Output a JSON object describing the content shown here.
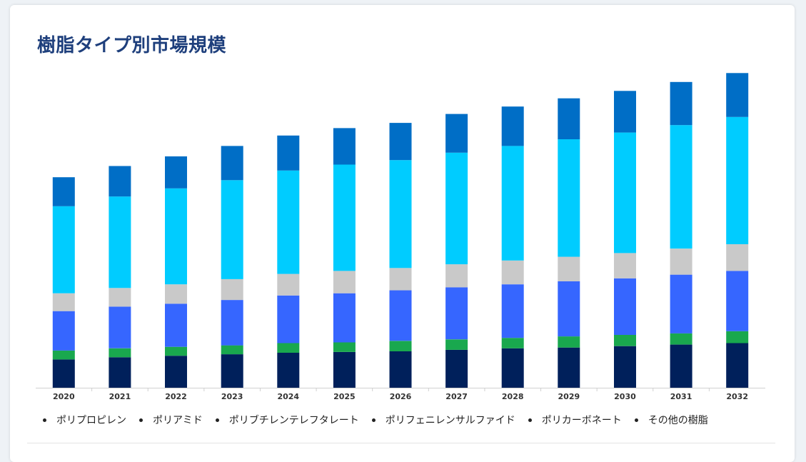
{
  "page": {
    "title": "樹脂タイプ別市場規模"
  },
  "chart_data": {
    "type": "bar",
    "stacked": true,
    "title": "樹脂タイプ別市場規模",
    "xlabel": "",
    "ylabel": "",
    "y_axis_labels_shown": false,
    "grid": false,
    "legend_position": "bottom",
    "categories": [
      "2020",
      "2021",
      "2022",
      "2023",
      "2024",
      "2025",
      "2026",
      "2027",
      "2028",
      "2029",
      "2030",
      "2031",
      "2032"
    ],
    "ylim": [
      0,
      430
    ],
    "series": [
      {
        "name": "ポリプロピレン",
        "color": "#00205b",
        "values": [
          38,
          41,
          43,
          45,
          47,
          48,
          49,
          51,
          53,
          54,
          56,
          58,
          60
        ]
      },
      {
        "name": "ポリアミド",
        "color": "#19a84e",
        "values": [
          12,
          12,
          12,
          12,
          13,
          13,
          14,
          14,
          14,
          15,
          15,
          15,
          16
        ]
      },
      {
        "name": "ポリブチレンテレフタレート",
        "color": "#3666ff",
        "values": [
          53,
          56,
          58,
          61,
          64,
          66,
          68,
          70,
          72,
          74,
          76,
          79,
          81
        ]
      },
      {
        "name": "ポリフェニレンサルファイド",
        "color": "#c9c9c9",
        "values": [
          24,
          25,
          26,
          28,
          29,
          30,
          30,
          31,
          32,
          33,
          34,
          35,
          36
        ]
      },
      {
        "name": "ポリカーボネート",
        "color": "#00ccff",
        "values": [
          117,
          123,
          129,
          133,
          139,
          143,
          145,
          150,
          154,
          158,
          162,
          166,
          171
        ]
      },
      {
        "name": "その他の樹脂",
        "color": "#006ec6",
        "values": [
          39,
          41,
          43,
          46,
          47,
          49,
          50,
          52,
          53,
          55,
          56,
          58,
          59
        ]
      }
    ]
  }
}
